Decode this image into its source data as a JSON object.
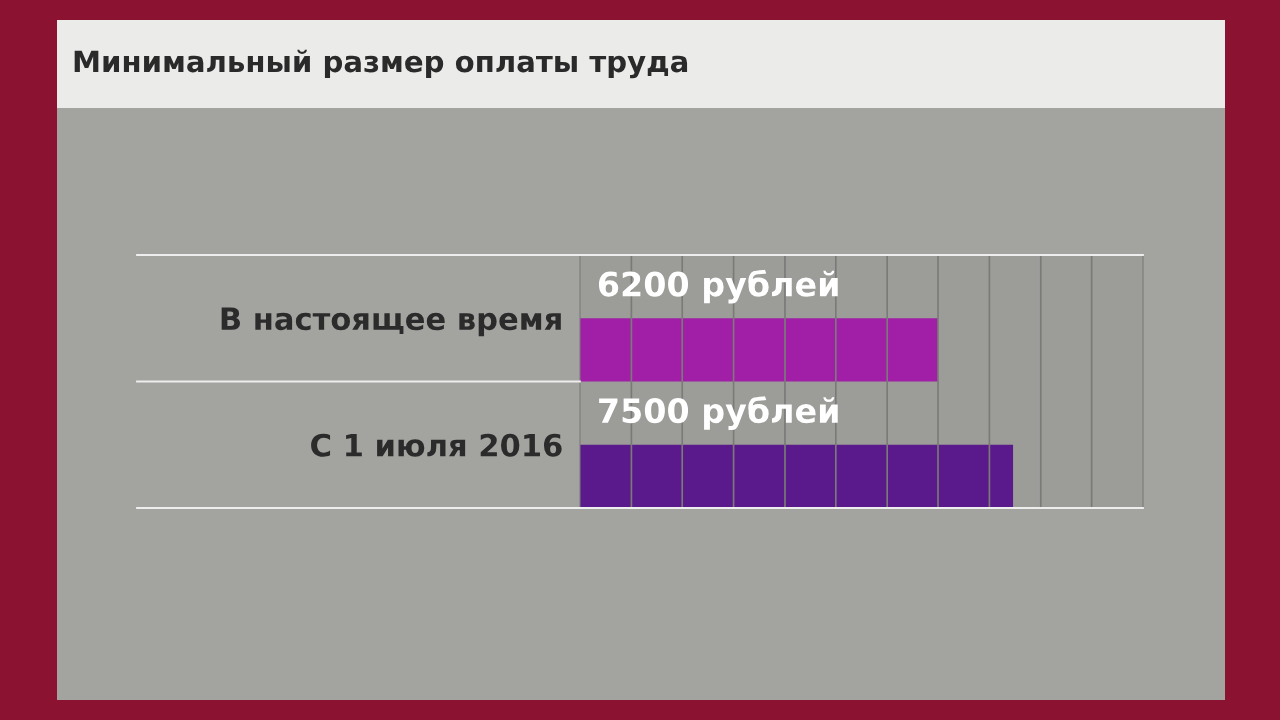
{
  "chart_data": {
    "type": "bar",
    "orientation": "horizontal",
    "title": "Минимальный размер оплаты труда",
    "categories": [
      "В настоящее время",
      "С 1 июля 2016"
    ],
    "values": [
      6200,
      7500
    ],
    "colors": [
      "#a01fa6",
      "#5b1a8c"
    ],
    "value_labels": [
      "6200 рублей",
      "7500 рублей"
    ],
    "xlim": [
      0,
      9750
    ],
    "xticks": [
      {
        "value": 890,
        "label": null
      },
      {
        "value": 1770,
        "label": null
      },
      {
        "value": 2660,
        "label": null
      },
      {
        "value": 3550,
        "label": null
      },
      {
        "value": 4430,
        "label": null
      },
      {
        "value": 5320,
        "label": null
      },
      {
        "value": 6200,
        "label": null
      },
      {
        "value": 7090,
        "label": null
      },
      {
        "value": 7980,
        "label": null
      },
      {
        "value": 8860,
        "label": null
      }
    ],
    "grid": "x"
  }
}
